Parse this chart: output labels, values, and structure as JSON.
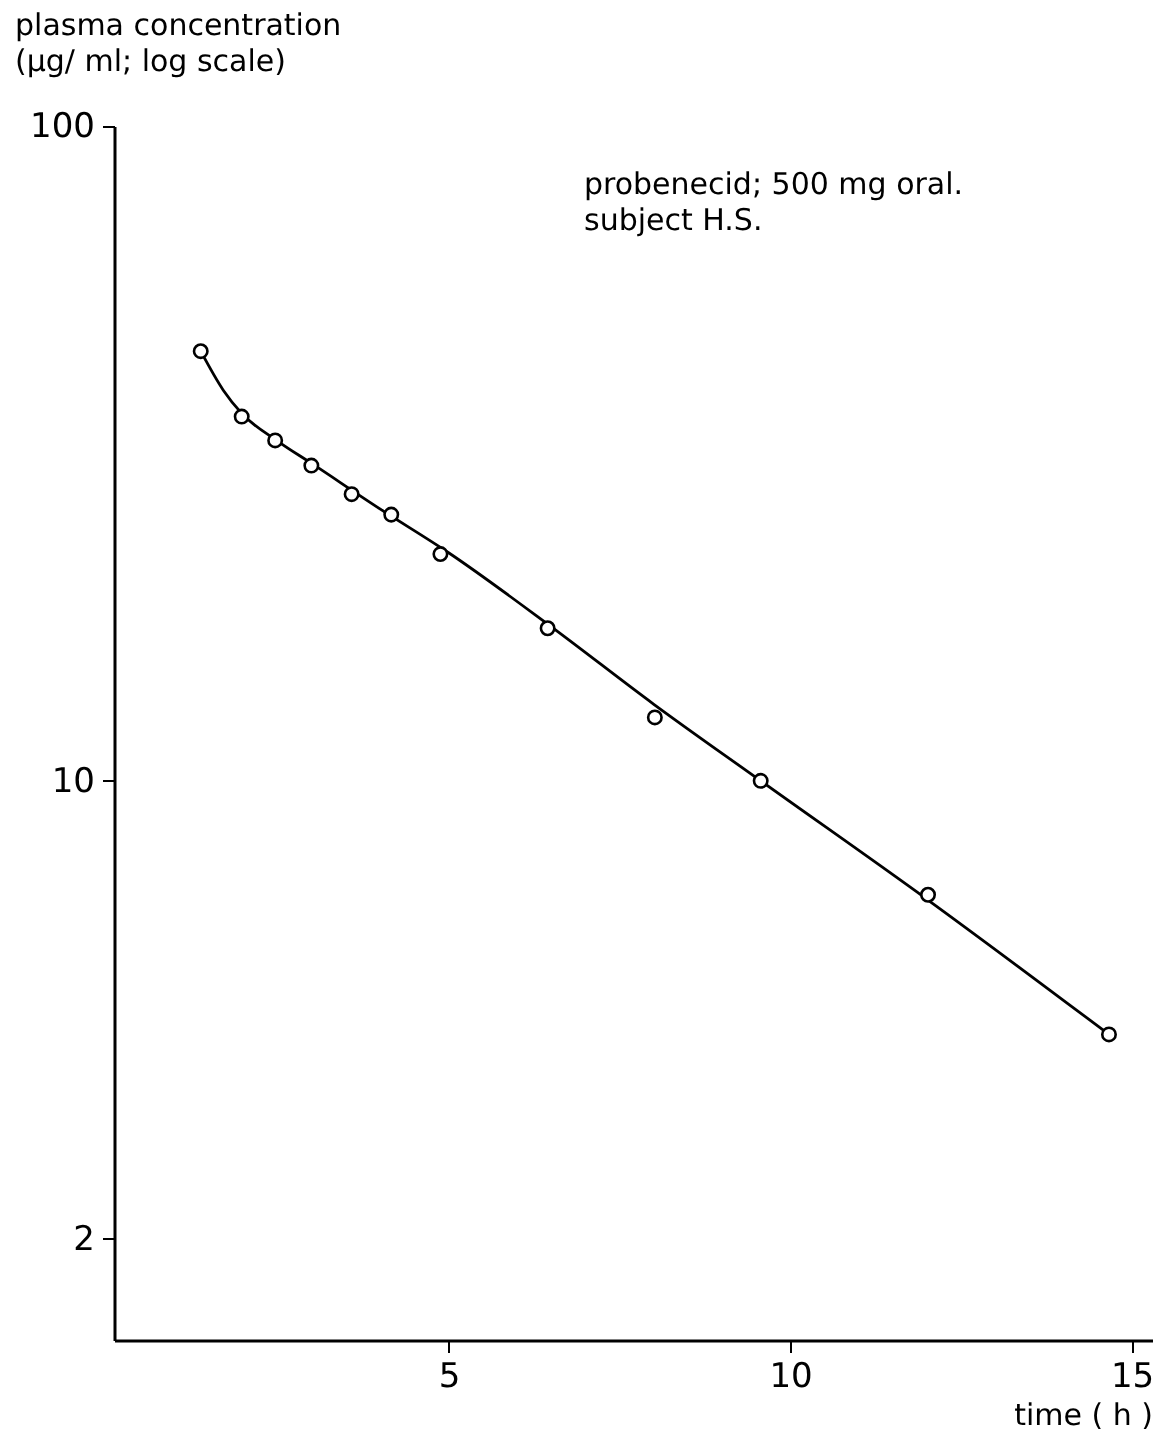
{
  "chart_data": {
    "type": "scatter",
    "ylabel": "plasma concentration\n(µg/ ml; log scale)",
    "xlabel": "time  ( h )",
    "annotations": [
      "probenecid; 500 mg oral.\nsubject H.S."
    ],
    "xlim": [
      0.1,
      15.3
    ],
    "xticks": [
      5,
      10,
      15
    ],
    "ylim": [
      1.4,
      100
    ],
    "yticks": [
      2,
      10,
      100
    ],
    "log": "y",
    "grid": false,
    "series": [
      {
        "color": "#000000",
        "marker": "circle",
        "x": [
          1.37,
          1.97,
          2.46,
          2.99,
          3.58,
          4.16,
          4.88,
          6.45,
          8.02,
          9.57,
          12.02,
          14.67
        ],
        "values": [
          45.3,
          36.0,
          33.1,
          30.3,
          27.4,
          25.5,
          22.2,
          17.1,
          12.5,
          10.0,
          6.7,
          4.1
        ]
      },
      {
        "type": "line",
        "color": "#000000",
        "line_style": "solid",
        "x": [
          1.37,
          1.7,
          1.97,
          2.5,
          3,
          4,
          5,
          6.5,
          8,
          9.57,
          12,
          14.67
        ],
        "values": [
          45.3,
          39.5,
          36.4,
          33,
          30.5,
          26,
          22.3,
          17.2,
          13.1,
          10.0,
          6.6,
          4.1
        ]
      }
    ]
  }
}
